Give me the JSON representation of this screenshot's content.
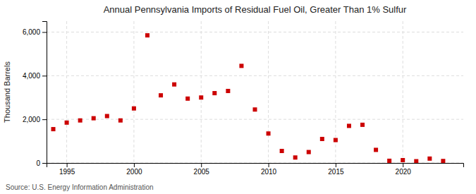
{
  "chart_data": {
    "type": "scatter",
    "title": "Annual Pennsylvania Imports of Residual Fuel Oil, Greater Than 1% Sulfur",
    "ylabel": "Thousand Barrels",
    "annotations": [
      "Source: U.S. Energy Information Administration"
    ],
    "x": [
      1994,
      1995,
      1996,
      1997,
      1998,
      1999,
      2000,
      2001,
      2002,
      2003,
      2004,
      2005,
      2006,
      2007,
      2008,
      2009,
      2010,
      2011,
      2012,
      2013,
      2014,
      2015,
      2016,
      2017,
      2018,
      2019,
      2020,
      2021,
      2022,
      2023
    ],
    "values": [
      1550,
      1850,
      1950,
      2050,
      2150,
      1950,
      2500,
      5850,
      3100,
      3600,
      2950,
      3000,
      3200,
      3300,
      4450,
      2450,
      1350,
      550,
      250,
      500,
      1100,
      1050,
      1700,
      1750,
      600,
      100,
      130,
      80,
      200,
      90
    ],
    "color": "#cc0000",
    "marker": "square",
    "xlim": [
      1993.5,
      2024.5
    ],
    "ylim": [
      0,
      6500
    ],
    "xticks": [
      1995,
      2000,
      2005,
      2010,
      2015,
      2020
    ],
    "yticks": [
      0,
      {
        "value": 2000,
        "label": "2,000"
      },
      {
        "value": 4000,
        "label": "4,000"
      },
      {
        "value": 6000,
        "label": "6,000"
      }
    ],
    "grid": true
  }
}
